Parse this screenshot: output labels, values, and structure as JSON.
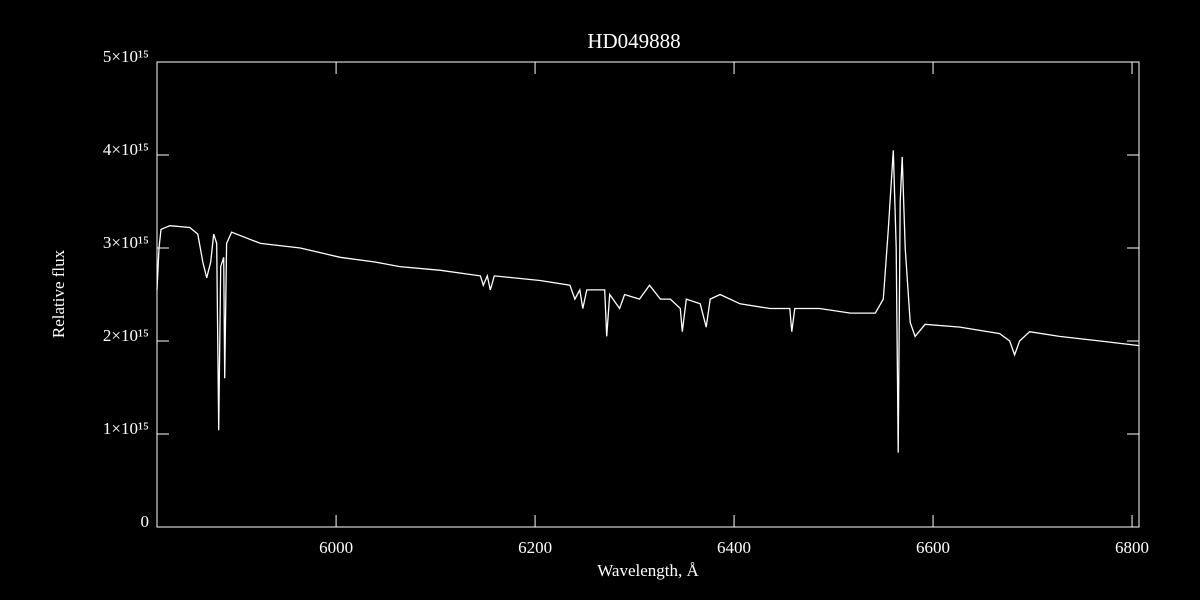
{
  "chart_data": {
    "type": "line",
    "title": "HD049888",
    "xlabel": "Wavelength, Å",
    "ylabel": "Relative flux",
    "color": "#ffffff",
    "x": [
      5820,
      5822,
      5824,
      5833,
      5853,
      5861,
      5866,
      5870,
      5874,
      5877,
      5880,
      5882,
      5884,
      5887,
      5888,
      5890,
      5895,
      5924,
      5964,
      6004,
      6039,
      6064,
      6105,
      6145,
      6148,
      6152,
      6155,
      6159,
      6205,
      6235,
      6240,
      6245,
      6248,
      6252,
      6270,
      6272,
      6275,
      6285,
      6290,
      6305,
      6315,
      6326,
      6336,
      6346,
      6348,
      6352,
      6366,
      6372,
      6376,
      6386,
      6406,
      6436,
      6456,
      6458,
      6461,
      6486,
      6517,
      6542,
      6550,
      6555,
      6560,
      6563,
      6565,
      6567,
      6569,
      6572,
      6577,
      6582,
      6592,
      6627,
      6667,
      6677,
      6682,
      6687,
      6697,
      6727,
      6768,
      6807
    ],
    "values": [
      2550000000000000.0,
      3000000000000000.0,
      3200000000000000.0,
      3240000000000000.0,
      3220000000000000.0,
      3150000000000000.0,
      2850000000000000.0,
      2680000000000000.0,
      2850000000000000.0,
      3150000000000000.0,
      3050000000000000.0,
      1040000000000000.0,
      2800000000000000.0,
      2900000000000000.0,
      1600000000000000.0,
      3050000000000000.0,
      3170000000000000.0,
      3050000000000000.0,
      3000000000000000.0,
      2900000000000000.0,
      2850000000000000.0,
      2800000000000000.0,
      2760000000000000.0,
      2700000000000000.0,
      2600000000000000.0,
      2700000000000000.0,
      2550000000000000.0,
      2700000000000000.0,
      2650000000000000.0,
      2600000000000000.0,
      2450000000000000.0,
      2550000000000000.0,
      2350000000000000.0,
      2550000000000000.0,
      2550000000000000.0,
      2050000000000000.0,
      2500000000000000.0,
      2350000000000000.0,
      2500000000000000.0,
      2450000000000000.0,
      2600000000000000.0,
      2450000000000000.0,
      2450000000000000.0,
      2350000000000000.0,
      2100000000000000.0,
      2450000000000000.0,
      2400000000000000.0,
      2150000000000000.0,
      2450000000000000.0,
      2500000000000000.0,
      2400000000000000.0,
      2350000000000000.0,
      2350000000000000.0,
      2100000000000000.0,
      2350000000000000.0,
      2350000000000000.0,
      2300000000000000.0,
      2300000000000000.0,
      2450000000000000.0,
      3200000000000000.0,
      4050000000000000.0,
      3000000000000000.0,
      800000000000000.0,
      3500000000000000.0,
      3980000000000000.0,
      3000000000000000.0,
      2200000000000000.0,
      2050000000000000.0,
      2180000000000000.0,
      2150000000000000.0,
      2080000000000000.0,
      2000000000000000.0,
      1850000000000000.0,
      2000000000000000.0,
      2100000000000000.0,
      2050000000000000.0,
      2000000000000000.0,
      1950000000000000.0
    ],
    "xlim": [
      5820,
      6807
    ],
    "xticks": [
      6000,
      6200,
      6400,
      6600,
      6800
    ],
    "ylim": [
      0,
      5000000000000000.0
    ],
    "yticks": [
      0,
      {
        "value": 1000000000000000.0,
        "label": "1×10¹⁵"
      },
      {
        "value": 2000000000000000.0,
        "label": "2×10¹⁵"
      },
      {
        "value": 3000000000000000.0,
        "label": "3×10¹⁵"
      },
      {
        "value": 4000000000000000.0,
        "label": "4×10¹⁵"
      },
      {
        "value": 5000000000000000.0,
        "label": "5×10¹⁵"
      }
    ]
  }
}
